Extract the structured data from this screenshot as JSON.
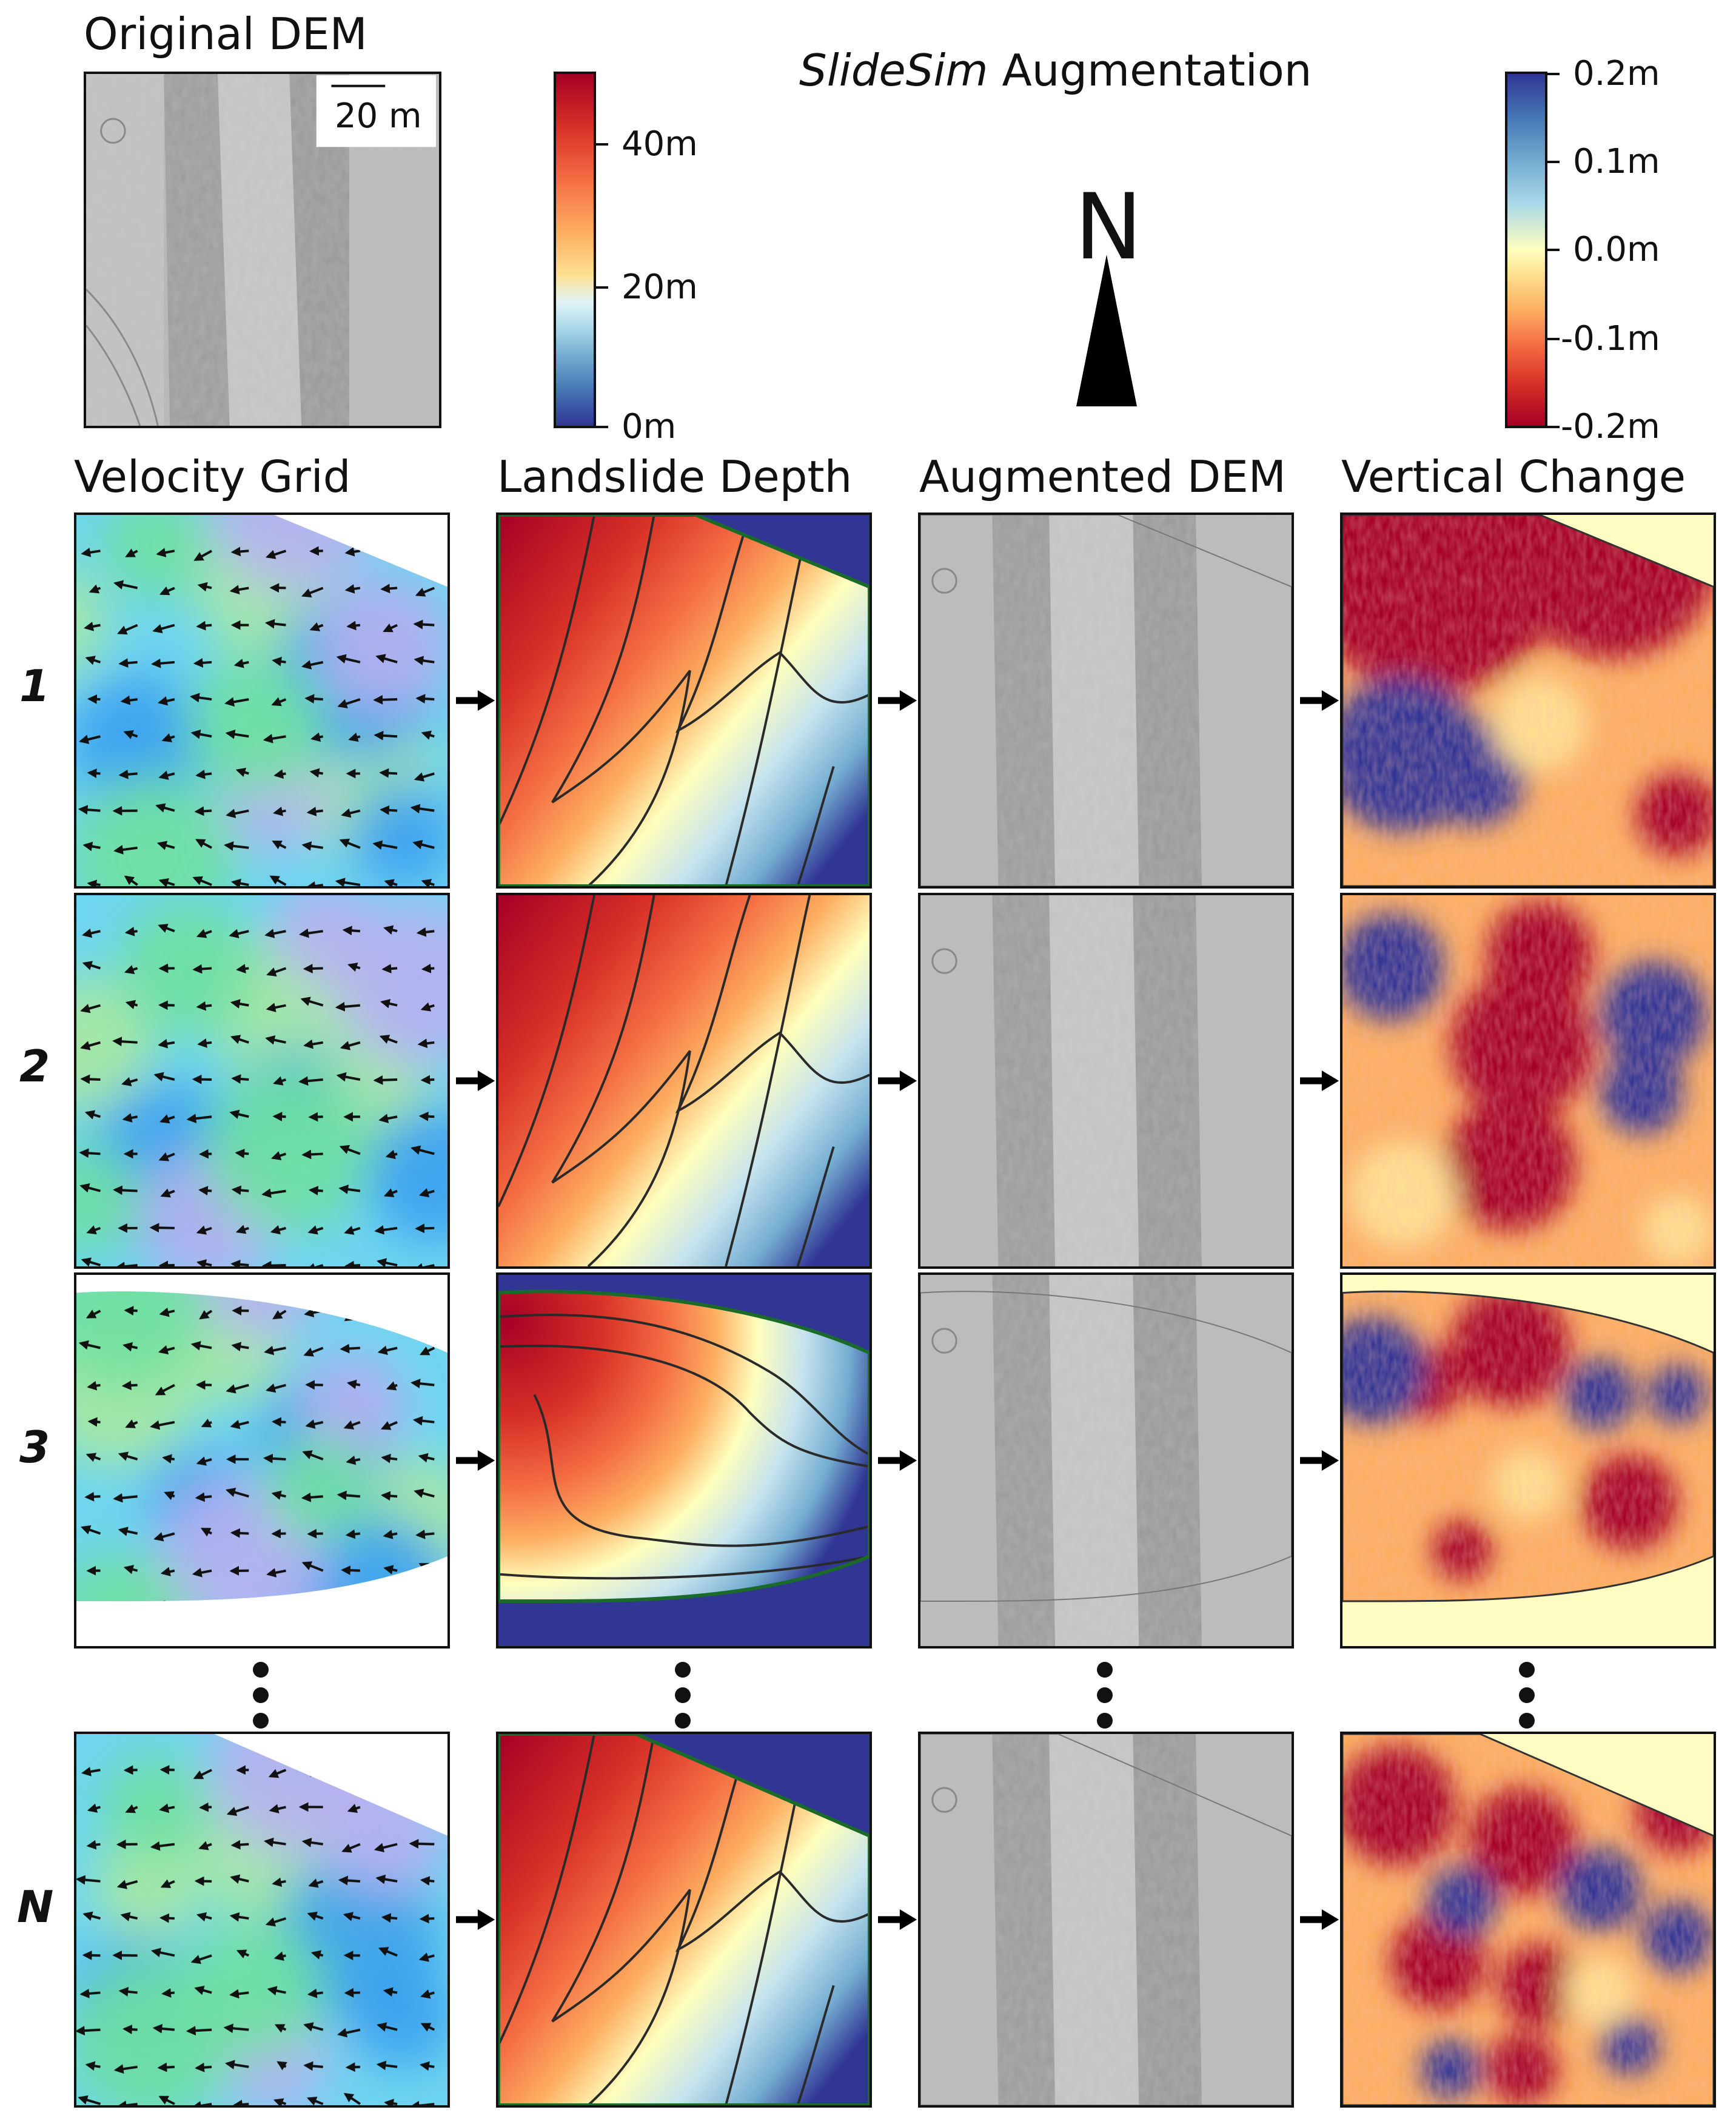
{
  "original_dem": {
    "title": "Original DEM",
    "scale_label": "20 m"
  },
  "depth_colorbar": {
    "ticks": [
      "40m",
      "20m",
      "0m"
    ]
  },
  "header": {
    "title_italic": "SlideSim",
    "title_rest": " Augmentation"
  },
  "north_arrow": {
    "label": "N"
  },
  "change_colorbar": {
    "ticks": [
      "0.2m",
      "0.1m",
      "0.0m",
      "-0.1m",
      "-0.2m"
    ]
  },
  "columns": [
    "Velocity Grid",
    "Landslide Depth",
    "Augmented DEM",
    "Vertical Change"
  ],
  "rows": [
    "1",
    "2",
    "3",
    "N"
  ],
  "colors": {
    "depth_top": "#a50026",
    "depth_mid": "#fefebd",
    "depth_low": "#74add1",
    "depth_bottom": "#313695",
    "outside_fill": "#fdfdc3",
    "contour": "#2a2a2a",
    "edge_contour": "#1a6b2a"
  }
}
